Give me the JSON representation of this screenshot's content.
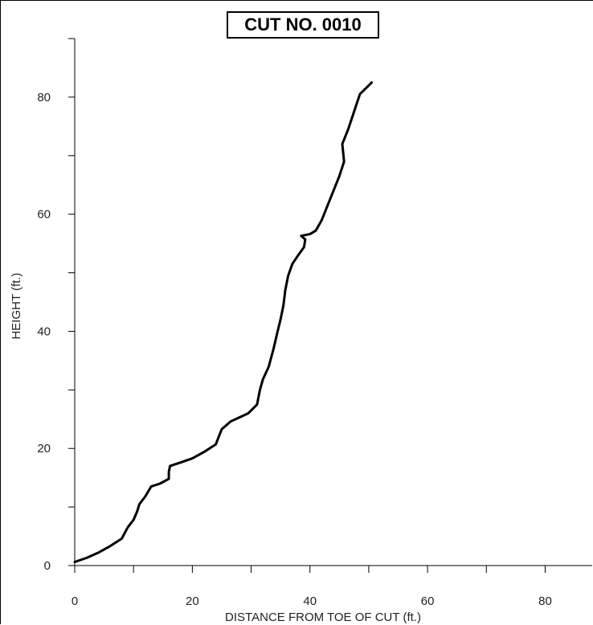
{
  "chart_data": {
    "type": "line",
    "title": "CUT NO. 0010",
    "xlabel": "DISTANCE FROM TOE OF CUT (ft.)",
    "ylabel": "HEIGHT (ft.)",
    "xlim": [
      0,
      88
    ],
    "ylim": [
      0,
      90
    ],
    "x_ticks": [
      0,
      20,
      40,
      60,
      80
    ],
    "y_ticks": [
      0,
      20,
      40,
      60,
      80
    ],
    "grid": false,
    "line_color": "#000000",
    "series": [
      {
        "points": [
          [
            0.0,
            0.6
          ],
          [
            2.0,
            1.3
          ],
          [
            4.0,
            2.2
          ],
          [
            6.0,
            3.3
          ],
          [
            8.0,
            4.6
          ],
          [
            9.0,
            6.5
          ],
          [
            10.0,
            7.8
          ],
          [
            10.6,
            9.2
          ],
          [
            11.0,
            10.5
          ],
          [
            12.0,
            11.8
          ],
          [
            13.0,
            13.5
          ],
          [
            14.5,
            14.0
          ],
          [
            16.0,
            14.8
          ],
          [
            16.0,
            16.0
          ],
          [
            16.2,
            17.0
          ],
          [
            18.0,
            17.6
          ],
          [
            20.0,
            18.3
          ],
          [
            22.0,
            19.4
          ],
          [
            24.0,
            20.7
          ],
          [
            24.5,
            22.0
          ],
          [
            25.0,
            23.3
          ],
          [
            26.5,
            24.6
          ],
          [
            28.0,
            25.3
          ],
          [
            29.5,
            26.0
          ],
          [
            31.0,
            27.5
          ],
          [
            31.5,
            30.0
          ],
          [
            32.0,
            31.8
          ],
          [
            33.0,
            34.0
          ],
          [
            33.8,
            37.0
          ],
          [
            34.5,
            40.0
          ],
          [
            35.0,
            42.0
          ],
          [
            35.5,
            44.5
          ],
          [
            35.8,
            47.0
          ],
          [
            36.3,
            49.5
          ],
          [
            37.0,
            51.5
          ],
          [
            38.0,
            53.0
          ],
          [
            39.0,
            54.4
          ],
          [
            39.2,
            55.7
          ],
          [
            38.5,
            56.3
          ],
          [
            40.0,
            56.6
          ],
          [
            41.0,
            57.2
          ],
          [
            42.0,
            59.0
          ],
          [
            43.0,
            61.5
          ],
          [
            44.0,
            64.0
          ],
          [
            45.0,
            66.5
          ],
          [
            45.8,
            69.0
          ],
          [
            45.5,
            72.0
          ],
          [
            46.5,
            74.5
          ],
          [
            47.5,
            77.5
          ],
          [
            48.5,
            80.5
          ],
          [
            50.5,
            82.5
          ]
        ]
      }
    ]
  }
}
